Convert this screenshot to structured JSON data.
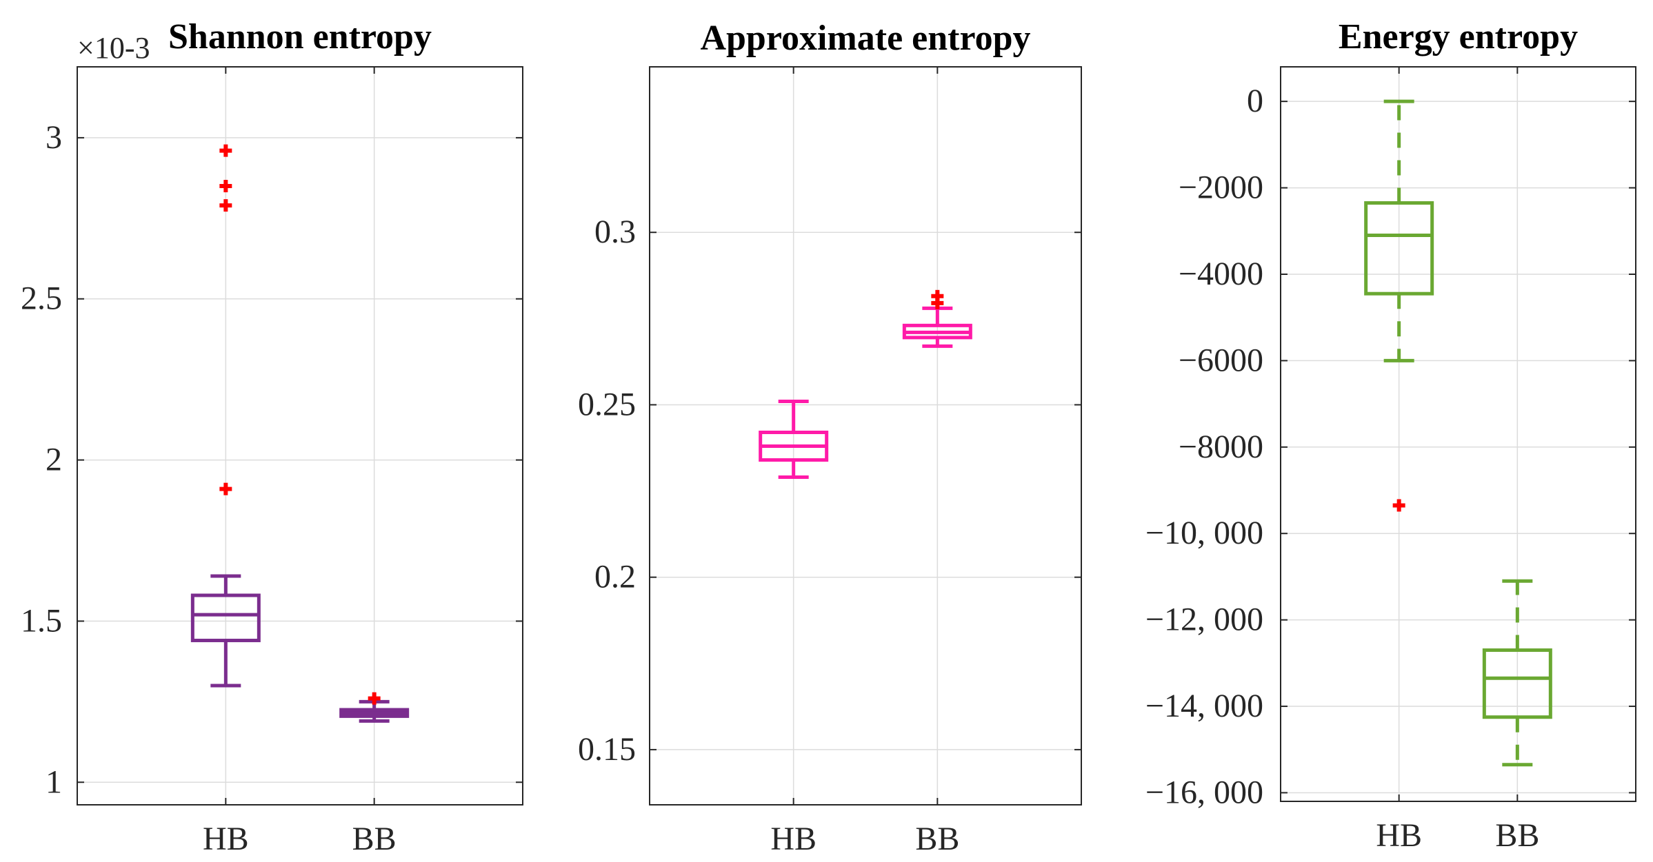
{
  "chart_data": [
    {
      "type": "box",
      "title": "Shannon entropy",
      "categories": [
        "HB",
        "BB"
      ],
      "y_multiplier_label": "×10-3",
      "ylim": [
        0.93,
        3.22
      ],
      "yticks": [
        1,
        1.5,
        2,
        2.5,
        3
      ],
      "ytick_labels": [
        "1",
        "1.5",
        "2",
        "2.5",
        "3"
      ],
      "grid": true,
      "color": "#7b2d8e",
      "whisker_style": "solid",
      "boxes": [
        {
          "category": "HB",
          "whisker_low": 1.3,
          "q1": 1.44,
          "median": 1.52,
          "q3": 1.58,
          "whisker_high": 1.64,
          "outliers": [
            1.91,
            2.79,
            2.85,
            2.96
          ]
        },
        {
          "category": "BB",
          "whisker_low": 1.19,
          "q1": 1.205,
          "median": 1.215,
          "q3": 1.225,
          "whisker_high": 1.25,
          "outliers": [
            1.26
          ]
        }
      ]
    },
    {
      "type": "box",
      "title": "Approximate entropy",
      "categories": [
        "HB",
        "BB"
      ],
      "ylim": [
        0.134,
        0.348
      ],
      "yticks": [
        0.15,
        0.2,
        0.25,
        0.3
      ],
      "ytick_labels": [
        "0.15",
        "0.2",
        "0.25",
        "0.3"
      ],
      "grid": true,
      "color": "#ff1aa8",
      "whisker_style": "solid",
      "boxes": [
        {
          "category": "HB",
          "whisker_low": 0.229,
          "q1": 0.234,
          "median": 0.238,
          "q3": 0.242,
          "whisker_high": 0.251,
          "outliers": []
        },
        {
          "category": "BB",
          "whisker_low": 0.267,
          "q1": 0.2695,
          "median": 0.271,
          "q3": 0.273,
          "whisker_high": 0.278,
          "outliers": [
            0.2795,
            0.2815
          ]
        }
      ]
    },
    {
      "type": "box",
      "title": "Energy entropy",
      "categories": [
        "HB",
        "BB"
      ],
      "ylim": [
        -16200,
        800
      ],
      "yticks": [
        0,
        -2000,
        -4000,
        -6000,
        -8000,
        -10000,
        -12000,
        -14000,
        -16000
      ],
      "ytick_labels": [
        "0",
        "−2000",
        "−4000",
        "−6000",
        "−8000",
        "−10, 000",
        "−12, 000",
        "−14, 000",
        "−16, 000"
      ],
      "grid": true,
      "color": "#6aa832",
      "whisker_style": "dashed",
      "boxes": [
        {
          "category": "HB",
          "whisker_low": -6000,
          "q1": -4450,
          "median": -3100,
          "q3": -2350,
          "whisker_high": 0,
          "outliers": [
            -9350
          ]
        },
        {
          "category": "BB",
          "whisker_low": -15350,
          "q1": -14250,
          "median": -13350,
          "q3": -12700,
          "whisker_high": -11100,
          "outliers": []
        }
      ]
    }
  ]
}
